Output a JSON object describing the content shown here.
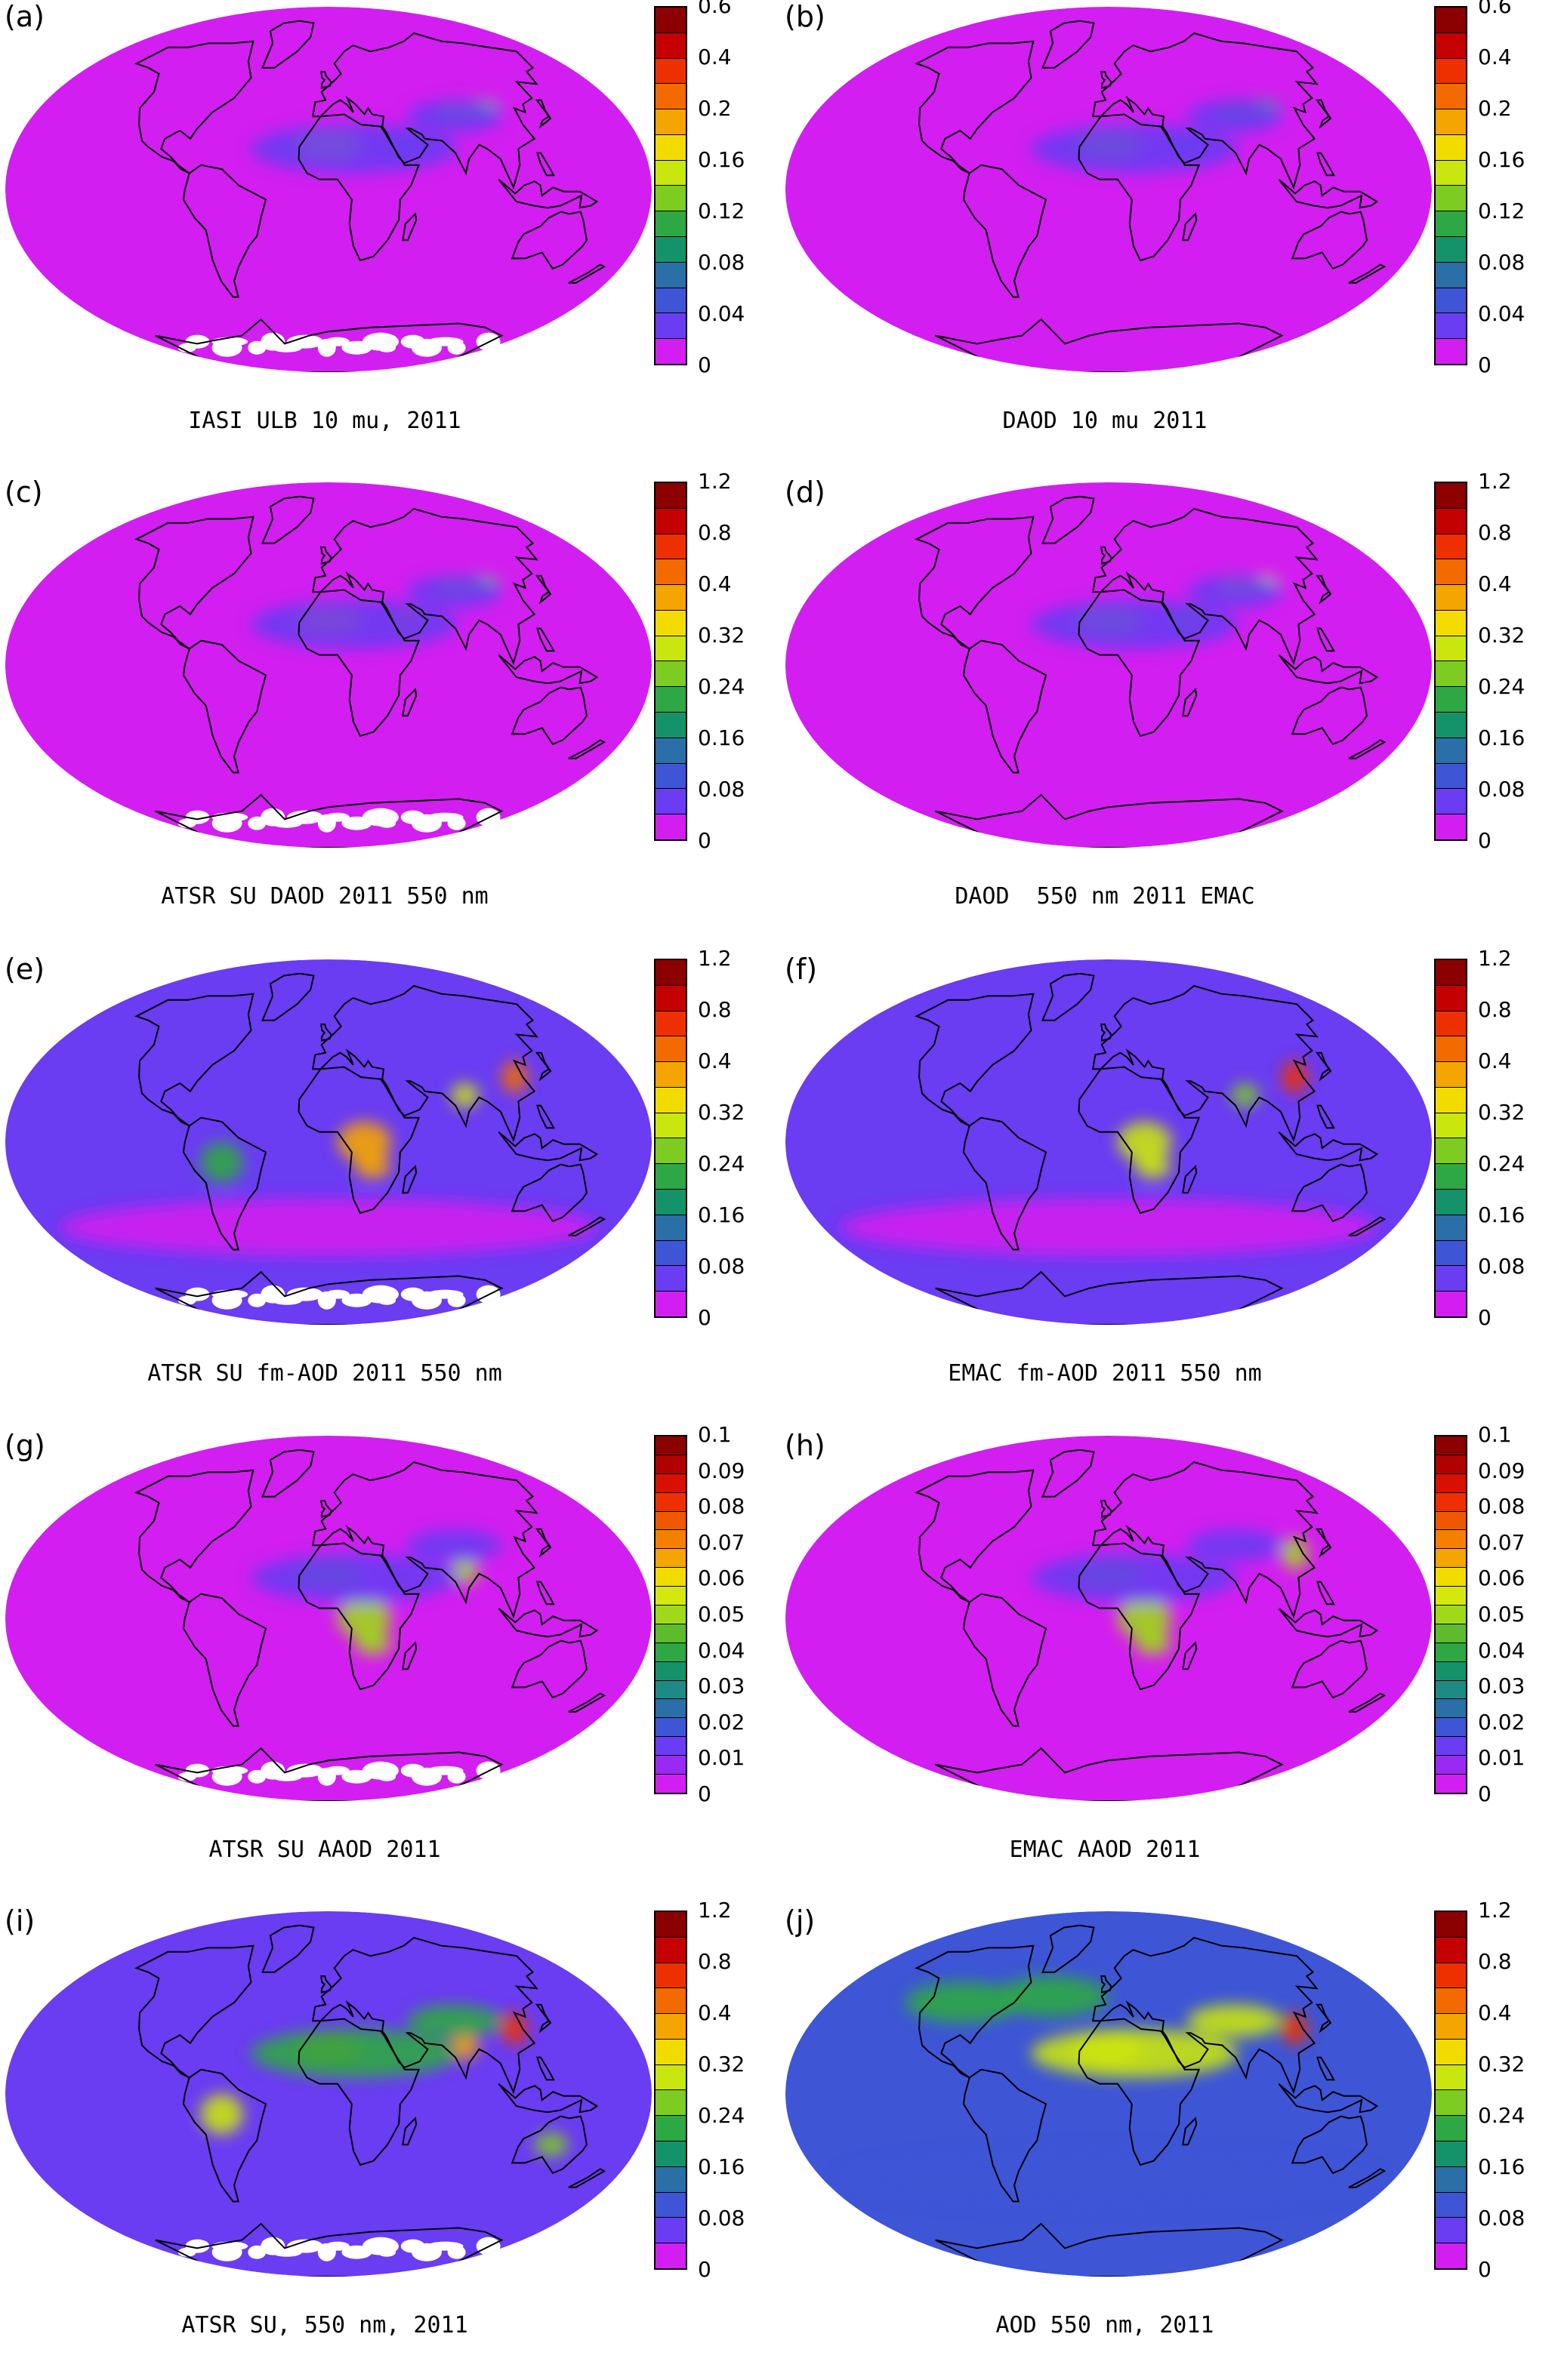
{
  "figure": {
    "colormaps": {
      "ten_colors": [
        "#d21ef0",
        "#6a3cf2",
        "#3e55d6",
        "#2a6fa8",
        "#14936a",
        "#2da844",
        "#7dcc22",
        "#c9e60f",
        "#f2dc00",
        "#f5a500",
        "#f26a00",
        "#ee3000",
        "#c40000",
        "#8b0000"
      ],
      "dust_colors": [
        "#d21ef0",
        "#6a3cf2",
        "#3e55d6",
        "#2a6fa8",
        "#14936a",
        "#2da844",
        "#7dcc22",
        "#c9e60f",
        "#f2dc00",
        "#f5a500",
        "#f26a00",
        "#ee3000",
        "#c40000",
        "#8b0000"
      ],
      "aaod_colors": [
        "#d21ef0",
        "#9a2af2",
        "#6a3cf2",
        "#3e55d6",
        "#2a6fa8",
        "#1e8a86",
        "#14936a",
        "#2da844",
        "#5cbc2e",
        "#a0d81a",
        "#d5e80e",
        "#f2dc00",
        "#f5a500",
        "#f58000",
        "#f05800",
        "#ee3000",
        "#d81000",
        "#b00000",
        "#8b0000"
      ]
    },
    "panels": [
      {
        "letter": "(a)",
        "caption": "IASI ULB 10 mu, 2011",
        "scale_ticks": [
          "0.6",
          "0.4",
          "0.2",
          "0.16",
          "0.12",
          "0.08",
          "0.04",
          "0"
        ],
        "colormap": "ten_colors",
        "background_color": "#d21ef0",
        "white_antarctica": true,
        "hotspots": [
          {
            "region": "Sahara",
            "color": "#c9e60f"
          },
          {
            "region": "Taklamakan",
            "color": "#7dcc22"
          },
          {
            "region": "Arabia",
            "color": "#3e55d6"
          },
          {
            "region": "Dust belt",
            "color": "#6a3cf2"
          }
        ]
      },
      {
        "letter": "(b)",
        "caption": "DAOD 10 mu 2011",
        "scale_ticks": [
          "0.6",
          "0.4",
          "0.2",
          "0.16",
          "0.12",
          "0.08",
          "0.04",
          "0"
        ],
        "colormap": "ten_colors",
        "background_color": "#d21ef0",
        "white_antarctica": false,
        "hotspots": [
          {
            "region": "Sahara",
            "color": "#7dcc22"
          },
          {
            "region": "Taklamakan",
            "color": "#2da844"
          },
          {
            "region": "Arabia",
            "color": "#3e55d6"
          },
          {
            "region": "Dust belt",
            "color": "#6a3cf2"
          }
        ]
      },
      {
        "letter": "(c)",
        "caption": "ATSR SU DAOD 2011 550 nm",
        "scale_ticks": [
          "1.2",
          "0.8",
          "0.4",
          "0.32",
          "0.24",
          "0.16",
          "0.08",
          "0"
        ],
        "colormap": "dust_colors",
        "background_color": "#d21ef0",
        "white_antarctica": true,
        "hotspots": [
          {
            "region": "Sahara",
            "color": "#f5a500"
          },
          {
            "region": "Arabia",
            "color": "#f26a00"
          },
          {
            "region": "Taklamakan",
            "color": "#7dcc22"
          },
          {
            "region": "Dust belt",
            "color": "#6a3cf2"
          }
        ]
      },
      {
        "letter": "(d)",
        "caption": "DAOD  550 nm 2011 EMAC",
        "scale_ticks": [
          "1.2",
          "0.8",
          "0.4",
          "0.32",
          "0.24",
          "0.16",
          "0.08",
          "0"
        ],
        "colormap": "dust_colors",
        "background_color": "#d21ef0",
        "white_antarctica": false,
        "hotspots": [
          {
            "region": "Sahara",
            "color": "#7dcc22"
          },
          {
            "region": "Taklamakan",
            "color": "#c9e60f"
          },
          {
            "region": "Arabia",
            "color": "#2da844"
          },
          {
            "region": "Dust belt",
            "color": "#6a3cf2"
          }
        ]
      },
      {
        "letter": "(e)",
        "caption": "ATSR SU fm-AOD 2011 550 nm",
        "scale_ticks": [
          "1.2",
          "0.8",
          "0.4",
          "0.32",
          "0.24",
          "0.16",
          "0.08",
          "0"
        ],
        "colormap": "ten_colors",
        "background_color": "#6a3cf2",
        "white_antarctica": true,
        "hotspots": [
          {
            "region": "Central Africa",
            "color": "#f5a500"
          },
          {
            "region": "East China",
            "color": "#f26a00"
          },
          {
            "region": "India",
            "color": "#c9e60f"
          },
          {
            "region": "Amazon",
            "color": "#2da844"
          },
          {
            "region": "Southern Ocean",
            "color": "#d21ef0"
          }
        ]
      },
      {
        "letter": "(f)",
        "caption": "EMAC fm-AOD 2011 550 nm",
        "scale_ticks": [
          "1.2",
          "0.8",
          "0.4",
          "0.32",
          "0.24",
          "0.16",
          "0.08",
          "0"
        ],
        "colormap": "ten_colors",
        "background_color": "#6a3cf2",
        "white_antarctica": false,
        "hotspots": [
          {
            "region": "East China",
            "color": "#ee3000"
          },
          {
            "region": "Central Africa",
            "color": "#c9e60f"
          },
          {
            "region": "India",
            "color": "#7dcc22"
          },
          {
            "region": "Southern Ocean",
            "color": "#d21ef0"
          }
        ]
      },
      {
        "letter": "(g)",
        "caption": "ATSR SU AAOD 2011",
        "scale_ticks": [
          "0.1",
          "0.09",
          "0.08",
          "0.07",
          "0.06",
          "0.05",
          "0.04",
          "0.03",
          "0.02",
          "0.01",
          "0"
        ],
        "colormap": "aaod_colors",
        "background_color": "#d21ef0",
        "white_antarctica": true,
        "hotspots": [
          {
            "region": "Central Africa",
            "color": "#a0d81a"
          },
          {
            "region": "India",
            "color": "#a0d81a"
          },
          {
            "region": "Sahara",
            "color": "#2da844"
          },
          {
            "region": "Dust belt",
            "color": "#6a3cf2"
          }
        ]
      },
      {
        "letter": "(h)",
        "caption": "EMAC AAOD 2011",
        "scale_ticks": [
          "0.1",
          "0.09",
          "0.08",
          "0.07",
          "0.06",
          "0.05",
          "0.04",
          "0.03",
          "0.02",
          "0.01",
          "0"
        ],
        "colormap": "aaod_colors",
        "background_color": "#d21ef0",
        "white_antarctica": false,
        "hotspots": [
          {
            "region": "Central Africa",
            "color": "#a0d81a"
          },
          {
            "region": "East China",
            "color": "#a0d81a"
          },
          {
            "region": "Sahara",
            "color": "#2da844"
          },
          {
            "region": "Dust belt",
            "color": "#6a3cf2"
          }
        ]
      },
      {
        "letter": "(i)",
        "caption": "ATSR SU, 550 nm, 2011",
        "scale_ticks": [
          "1.2",
          "0.8",
          "0.4",
          "0.32",
          "0.24",
          "0.16",
          "0.08",
          "0"
        ],
        "colormap": "ten_colors",
        "background_color": "#6a3cf2",
        "white_antarctica": true,
        "hotspots": [
          {
            "region": "Sahara",
            "color": "#f26a00"
          },
          {
            "region": "East China",
            "color": "#ee3000"
          },
          {
            "region": "India",
            "color": "#f5a500"
          },
          {
            "region": "Amazon",
            "color": "#c9e60f"
          },
          {
            "region": "Australia",
            "color": "#7dcc22"
          },
          {
            "region": "Dust belt",
            "color": "#2da844"
          }
        ]
      },
      {
        "letter": "(j)",
        "caption": "AOD 550 nm, 2011",
        "scale_ticks": [
          "1.2",
          "0.8",
          "0.4",
          "0.32",
          "0.24",
          "0.16",
          "0.08",
          "0"
        ],
        "colormap": "ten_colors",
        "background_color": "#3e55d6",
        "white_antarctica": false,
        "hotspots": [
          {
            "region": "Sahara",
            "color": "#f2dc00"
          },
          {
            "region": "East China",
            "color": "#ee3000"
          },
          {
            "region": "North Atlantic",
            "color": "#2da844"
          },
          {
            "region": "Dust belt",
            "color": "#c9e60f"
          },
          {
            "region": "Southern Ocean",
            "color": "#3e55d6"
          }
        ]
      }
    ]
  }
}
